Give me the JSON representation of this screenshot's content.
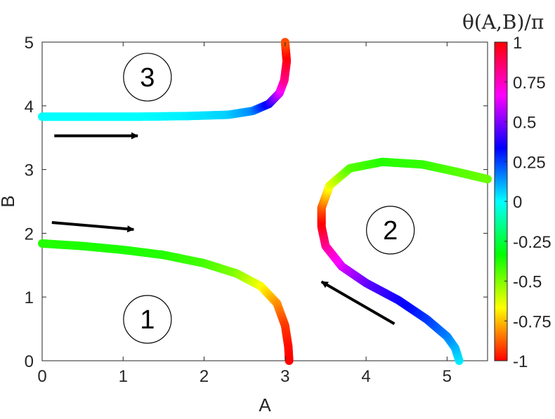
{
  "chart_data": {
    "type": "scatter",
    "title": "",
    "xlabel": "A",
    "ylabel": "B",
    "xlim": [
      0,
      5.5
    ],
    "ylim": [
      0,
      5
    ],
    "xticks": [
      "0",
      "1",
      "2",
      "3",
      "4",
      "5"
    ],
    "yticks": [
      "0",
      "1",
      "2",
      "3",
      "4",
      "5"
    ],
    "grid": false,
    "colorbar": {
      "title": "θ(A,B)/π",
      "range": [
        -1,
        1
      ],
      "ticks": [
        "1",
        "0.75",
        "0.5",
        "0.25",
        "0",
        "-0.25",
        "-0.5",
        "-0.75",
        "-1"
      ],
      "colormap": "hsv"
    },
    "curves": [
      {
        "label": "1",
        "label_pos": [
          1.3,
          0.65
        ],
        "points": [
          [
            0.0,
            1.84,
            -0.38
          ],
          [
            0.5,
            1.8,
            -0.37
          ],
          [
            1.0,
            1.74,
            -0.37
          ],
          [
            1.5,
            1.66,
            -0.38
          ],
          [
            2.0,
            1.53,
            -0.42
          ],
          [
            2.4,
            1.37,
            -0.5
          ],
          [
            2.7,
            1.17,
            -0.65
          ],
          [
            2.9,
            0.9,
            -0.8
          ],
          [
            3.0,
            0.55,
            -0.92
          ],
          [
            3.04,
            0.22,
            -0.98
          ],
          [
            3.05,
            0.0,
            -1.0
          ]
        ]
      },
      {
        "label": "2",
        "label_pos": [
          4.3,
          2.05
        ],
        "points": [
          [
            5.15,
            0.0,
            0.02
          ],
          [
            5.1,
            0.2,
            0.08
          ],
          [
            5.0,
            0.38,
            0.15
          ],
          [
            4.75,
            0.65,
            0.25
          ],
          [
            4.4,
            0.95,
            0.35
          ],
          [
            4.0,
            1.22,
            0.45
          ],
          [
            3.7,
            1.48,
            0.6
          ],
          [
            3.5,
            1.8,
            0.78
          ],
          [
            3.45,
            2.1,
            0.95
          ],
          [
            3.45,
            2.4,
            -0.9
          ],
          [
            3.55,
            2.75,
            -0.65
          ],
          [
            3.8,
            3.02,
            -0.45
          ],
          [
            4.2,
            3.12,
            -0.38
          ],
          [
            4.7,
            3.08,
            -0.4
          ],
          [
            5.1,
            2.97,
            -0.44
          ],
          [
            5.5,
            2.85,
            -0.47
          ]
        ]
      },
      {
        "label": "3",
        "label_pos": [
          1.3,
          4.45
        ],
        "points": [
          [
            0.0,
            3.83,
            0.0
          ],
          [
            0.6,
            3.83,
            0.0
          ],
          [
            1.2,
            3.83,
            0.0
          ],
          [
            1.8,
            3.84,
            0.02
          ],
          [
            2.3,
            3.86,
            0.06
          ],
          [
            2.6,
            3.92,
            0.15
          ],
          [
            2.8,
            4.03,
            0.35
          ],
          [
            2.93,
            4.2,
            0.6
          ],
          [
            2.99,
            4.4,
            0.8
          ],
          [
            3.02,
            4.7,
            0.95
          ],
          [
            3.0,
            5.0,
            -0.9
          ]
        ]
      }
    ],
    "arrows": [
      {
        "from": [
          0.15,
          3.53
        ],
        "to": [
          1.18,
          3.53
        ]
      },
      {
        "from": [
          0.12,
          2.17
        ],
        "to": [
          1.13,
          2.06
        ]
      },
      {
        "from": [
          4.35,
          0.58
        ],
        "to": [
          3.45,
          1.24
        ]
      }
    ]
  }
}
